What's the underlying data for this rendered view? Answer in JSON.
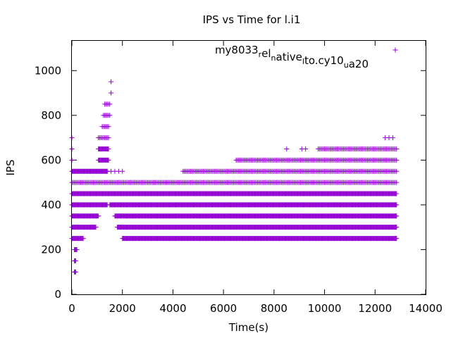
{
  "chart_data": {
    "type": "scatter",
    "title": "IPS vs Time for l.i1",
    "xlabel": "Time(s)",
    "ylabel": "IPS",
    "xlim": [
      0,
      14000
    ],
    "ylim": [
      0,
      1133
    ],
    "xticks": [
      0,
      2000,
      4000,
      6000,
      8000,
      10000,
      12000,
      14000
    ],
    "yticks": [
      0,
      200,
      400,
      600,
      800,
      1000
    ],
    "grid": false,
    "legend_position": "top-right",
    "series": [
      {
        "name": "my8033",
        "legend_parts": [
          {
            "text": "my8033",
            "shift": "none"
          },
          {
            "text": "r",
            "shift": "sub"
          },
          {
            "text": "el",
            "shift": "none"
          },
          {
            "text": "n",
            "shift": "sub"
          },
          {
            "text": "ative",
            "shift": "none"
          },
          {
            "text": "l",
            "shift": "sub"
          },
          {
            "text": "to.cy10",
            "shift": "none"
          },
          {
            "text": "u",
            "shift": "sub"
          },
          {
            "text": "a20",
            "shift": "none"
          }
        ],
        "color": "#9400d3",
        "marker": "plus",
        "bands": [
          {
            "ips": 100,
            "x_start": 100,
            "x_end": 150,
            "density": "dense"
          },
          {
            "ips": 150,
            "x_start": 100,
            "x_end": 160,
            "density": "dense"
          },
          {
            "ips": 200,
            "x_start": 100,
            "x_end": 220,
            "density": "dense"
          },
          {
            "ips": 250,
            "x_start": 0,
            "x_end": 470,
            "density": "dense"
          },
          {
            "ips": 250,
            "x_start": 2000,
            "x_end": 12850,
            "density": "dense"
          },
          {
            "ips": 300,
            "x_start": 0,
            "x_end": 950,
            "density": "dense"
          },
          {
            "ips": 300,
            "x_start": 1800,
            "x_end": 12850,
            "density": "dense"
          },
          {
            "ips": 350,
            "x_start": 0,
            "x_end": 1050,
            "density": "dense"
          },
          {
            "ips": 350,
            "x_start": 1700,
            "x_end": 12850,
            "density": "dense"
          },
          {
            "ips": 400,
            "x_start": 0,
            "x_end": 1400,
            "density": "dense"
          },
          {
            "ips": 400,
            "x_start": 1500,
            "x_end": 12850,
            "density": "dense"
          },
          {
            "ips": 450,
            "x_start": 0,
            "x_end": 12850,
            "density": "dense"
          },
          {
            "ips": 500,
            "x_start": 0,
            "x_end": 12850,
            "density": "medium"
          },
          {
            "ips": 550,
            "x_start": 0,
            "x_end": 1400,
            "density": "dense"
          },
          {
            "ips": 550,
            "x_start": 1400,
            "x_end": 2000,
            "density": "sparse"
          },
          {
            "ips": 550,
            "x_start": 4400,
            "x_end": 12850,
            "density": "medium"
          },
          {
            "ips": 600,
            "x_start": 0,
            "x_end": 0,
            "density": "single"
          },
          {
            "ips": 600,
            "x_start": 1050,
            "x_end": 1450,
            "density": "dense"
          },
          {
            "ips": 600,
            "x_start": 6500,
            "x_end": 12850,
            "density": "medium"
          },
          {
            "ips": 650,
            "x_start": 0,
            "x_end": 0,
            "density": "single"
          },
          {
            "ips": 650,
            "x_start": 1050,
            "x_end": 1450,
            "density": "dense"
          },
          {
            "ips": 650,
            "x_start": 8500,
            "x_end": 8500,
            "density": "single"
          },
          {
            "ips": 650,
            "x_start": 9100,
            "x_end": 9300,
            "density": "sparse"
          },
          {
            "ips": 650,
            "x_start": 9750,
            "x_end": 12850,
            "density": "medium"
          },
          {
            "ips": 700,
            "x_start": 0,
            "x_end": 0,
            "density": "single"
          },
          {
            "ips": 700,
            "x_start": 1050,
            "x_end": 1450,
            "density": "medium"
          },
          {
            "ips": 700,
            "x_start": 12400,
            "x_end": 12800,
            "density": "sparse"
          },
          {
            "ips": 750,
            "x_start": 1200,
            "x_end": 1450,
            "density": "medium"
          },
          {
            "ips": 800,
            "x_start": 1250,
            "x_end": 1500,
            "density": "medium"
          },
          {
            "ips": 850,
            "x_start": 1300,
            "x_end": 1500,
            "density": "medium"
          },
          {
            "ips": 900,
            "x_start": 1550,
            "x_end": 1550,
            "density": "single"
          },
          {
            "ips": 950,
            "x_start": 1550,
            "x_end": 1550,
            "density": "single"
          }
        ]
      }
    ]
  }
}
